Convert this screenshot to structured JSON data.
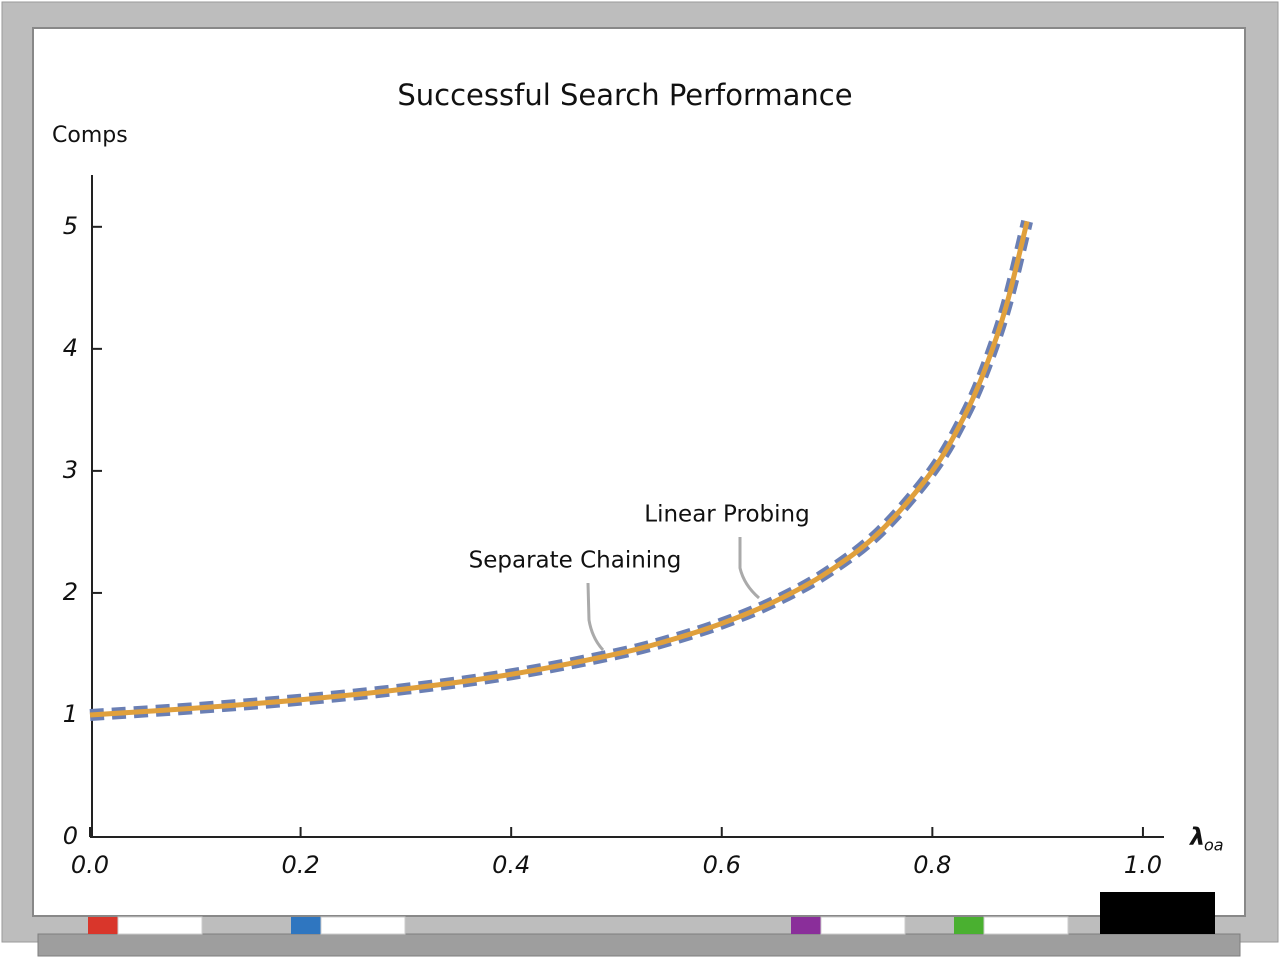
{
  "chart_data": {
    "type": "line",
    "title": "Successful Search Performance",
    "ylabel": "Comps",
    "xlabel": {
      "symbol": "λ",
      "subscript": "oa"
    },
    "x": [
      0,
      0.1,
      0.2,
      0.3,
      0.4,
      0.5,
      0.55,
      0.6,
      0.65,
      0.7,
      0.75,
      0.8,
      0.83,
      0.85,
      0.87,
      0.89
    ],
    "series": [
      {
        "name": "Separate Chaining",
        "color": "#6a7fb4",
        "dash": true,
        "values": [
          1,
          1.056,
          1.125,
          1.214,
          1.333,
          1.5,
          1.611,
          1.75,
          1.929,
          2.167,
          2.5,
          3.0,
          3.441,
          3.833,
          4.346,
          5.045
        ]
      },
      {
        "name": "Linear Probing",
        "color": "#e0a03c",
        "dash": false,
        "values": [
          1,
          1.056,
          1.125,
          1.214,
          1.333,
          1.5,
          1.611,
          1.75,
          1.929,
          2.167,
          2.5,
          3.0,
          3.441,
          3.833,
          4.346,
          5.045
        ]
      }
    ],
    "xlim": [
      0,
      1.02
    ],
    "ylim": [
      0,
      5.4
    ],
    "xticks": [
      {
        "value": 0,
        "label": "0.0"
      },
      {
        "value": 0.2,
        "label": "0.2"
      },
      {
        "value": 0.4,
        "label": "0.4"
      },
      {
        "value": 0.6,
        "label": "0.6"
      },
      {
        "value": 0.8,
        "label": "0.8"
      },
      {
        "value": 1,
        "label": "1.0"
      }
    ],
    "yticks": [
      0,
      1,
      2,
      3,
      4,
      5
    ],
    "grid": false
  }
}
